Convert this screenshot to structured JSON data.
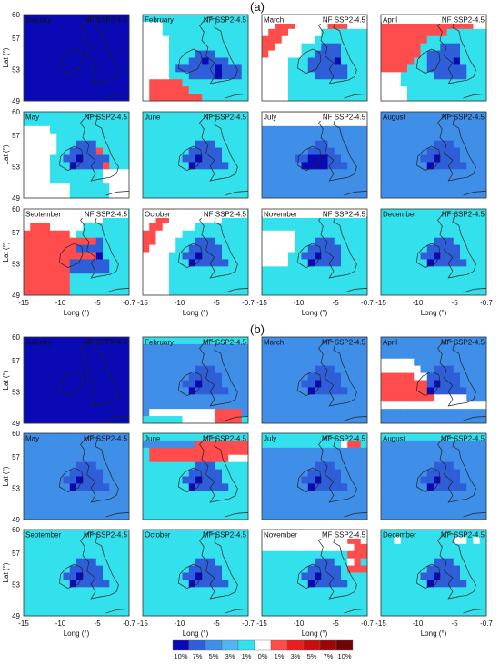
{
  "figure": {
    "panel_labels": [
      "(a)",
      "(b)"
    ],
    "xlabel": "Long (°)",
    "ylabel": "Lat (°)",
    "x_ticks": [
      "-15",
      "-10",
      "-5",
      "-0.7"
    ],
    "y_ticks": [
      "60",
      "57",
      "53",
      "49"
    ]
  },
  "colorbar": {
    "labels": [
      "10%",
      "7%",
      "5%",
      "3%",
      "1%",
      "0%",
      "1%",
      "3%",
      "5%",
      "7%",
      "10%"
    ],
    "colors": [
      "#0a0ab4",
      "#2e5fd8",
      "#3f8ee8",
      "#4fb6f4",
      "#33e1ec",
      "#ffffff",
      "#ff4c4c",
      "#e81e1e",
      "#c80e0e",
      "#990808",
      "#6e0404"
    ]
  },
  "chart_data": {
    "type": "heatmap",
    "xlim": [
      -15,
      -0.7
    ],
    "ylim": [
      49,
      60
    ],
    "groups": [
      {
        "label": "(a)",
        "scenario": "NF SSP2-4.5",
        "months": [
          {
            "month": "January",
            "rows": [
              "1111111111111111",
              "1111111111111111",
              "1111111111111111",
              "1111111111111111",
              "1111111111111111",
              "1111111111111111",
              "1111111111111111",
              "1111111111111111",
              "1111111111111111",
              "1111111111111111",
              "1111111111111111",
              "1111111111111111"
            ]
          },
          {
            "month": "February",
            "rows": [
              "4444444444444444",
              "0004444444444444",
              "0004444444444444",
              "0000444444444444",
              "0000444444444444",
              "0000444422244444",
              "0000444221222444",
              "0000422222212224",
              "0000444222212224",
              "0666664444444444",
              "0666666444444444",
              "0666666664444444"
            ]
          },
          {
            "month": "March",
            "rows": [
              "0000000000066600",
              "0066600000666000",
              "0666000004444444",
              "6660000044444444",
              "6600004442224444",
              "6000004422224444",
              "0000444222214444",
              "0000444222222444",
              "0000444422222444",
              "0000444444444444",
              "0000444444444444",
              "0000444444444444"
            ]
          },
          {
            "month": "April",
            "rows": [
              "0666666666666600",
              "6666666666666600",
              "6666666666444444",
              "6666666444444444",
              "6666664442224444",
              "6666664222224444",
              "6666644222214444",
              "6666444222222444",
              "0004444422222444",
              "0004444444444444",
              "0000444444444444",
              "0000444444444444"
            ]
          },
          {
            "month": "May",
            "rows": [
              "4444444444444444",
              "4444444444444444",
              "0000444444444444",
              "0000044444444444",
              "0000044422244444",
              "0000044222264444",
              "0000442212222444",
              "0000444122226444",
              "0000444444440000",
              "0000444444440000",
              "0000000444444000",
              "0000000444444000"
            ]
          },
          {
            "month": "June",
            "rows": [
              "4444444444444444",
              "4444444444444444",
              "4444444444444444",
              "4444444444444444",
              "4444444422244444",
              "4444444222224444",
              "4444442212224444",
              "4444444122222444",
              "4444444444444444",
              "4444444444444444",
              "4444444444444444",
              "4444444444444444"
            ]
          },
          {
            "month": "July",
            "rows": [
              "0066666666000000",
              "0000000000000000",
              "3333333333333333",
              "3333333333333333",
              "3333333322333333",
              "3333333222233333",
              "3333322111223333",
              "3333331111222333",
              "3333333333333333",
              "3333333333333333",
              "3333333333333333",
              "3333333333333333"
            ]
          },
          {
            "month": "August",
            "rows": [
              "3333333333333333",
              "3333333333333333",
              "3333333333333333",
              "3333333333333333",
              "3333333322233333",
              "3333333222223333",
              "3333332212223333",
              "3333333122222333",
              "3333333333333333",
              "3333333333333333",
              "3333333333333333",
              "3333333333333333"
            ]
          },
          {
            "month": "September",
            "rows": [
              "0000000000004444",
              "0000000000004444",
              "0666000004444444",
              "6666666044444444",
              "6666666666624444",
              "6666666622224444",
              "6666666666614444",
              "6666666222222444",
              "6666666222222444",
              "6666666444444444",
              "6666666444444444",
              "6666666444444444"
            ]
          },
          {
            "month": "October",
            "rows": [
              "0006600000004444",
              "0066000000004444",
              "0660000044444444",
              "6600004444444444",
              "6600044422244444",
              "6000044222224444",
              "0000442212224444",
              "0000444122222444",
              "0000444444444444",
              "0000444444444444",
              "0000444444444444",
              "0000444444444444"
            ]
          },
          {
            "month": "November",
            "rows": [
              "0000000000000000",
              "4444444444444444",
              "4444444444444444",
              "0000044444444444",
              "0000044422244444",
              "0000044222224444",
              "0000442212224444",
              "0000444122224444",
              "4444444444444444",
              "4444444444444444",
              "4444444444444444",
              "4444444444444444"
            ]
          },
          {
            "month": "December",
            "rows": [
              "4444444444444444",
              "4444444444444444",
              "4444444444444444",
              "4444444444444444",
              "4444444422244444",
              "4444444222224444",
              "4444442212224444",
              "4444444122222444",
              "4444444444444444",
              "4444444444444444",
              "4444444444444444",
              "4444444444444444"
            ]
          }
        ]
      },
      {
        "label": "(b)",
        "scenario": "MF SSP2-4.5",
        "months": [
          {
            "month": "January",
            "rows": [
              "1111111111111111",
              "1111111111111111",
              "1111111111111111",
              "1111111111111111",
              "1111111111111111",
              "1111111111111111",
              "1111111111111111",
              "1111111111111111",
              "1111111111111111",
              "1111111111111111",
              "1111111111111111",
              "1111111111111111"
            ]
          },
          {
            "month": "February",
            "rows": [
              "4444444444444444",
              "3333333333333333",
              "3333333333333333",
              "3333333333333333",
              "3333333322233333",
              "3333333222223333",
              "3333332212223333",
              "3333333122222333",
              "3333333333333333",
              "3333333333333333",
              "3000000000066663",
              "4444440000066664"
            ]
          },
          {
            "month": "March",
            "rows": [
              "3333333333333333",
              "3333333333333333",
              "3333333333333333",
              "3333333333333333",
              "3333333322233333",
              "3333333222223333",
              "3333332212223333",
              "3333333122222333",
              "3333333333333333",
              "3333333333333333",
              "3333333333333333",
              "3333333333333333"
            ]
          },
          {
            "month": "April",
            "rows": [
              "3333333333333333",
              "3333333333333333",
              "3333333333333333",
              "0000033333333333",
              "0000003322233333",
              "6666600222223333",
              "6666666212223333",
              "6666666122222333",
              "6666666600000333",
              "0000000000000000",
              "3333333333333333",
              "3333333333333333"
            ]
          },
          {
            "month": "May",
            "rows": [
              "3333333333333333",
              "3333333333333333",
              "3333333333333333",
              "3333333333333333",
              "3333333322233333",
              "3333333222223333",
              "3333332212223333",
              "3333333122222333",
              "3333333333333333",
              "3333333333333333",
              "3333333333333333",
              "3333333333333333"
            ]
          },
          {
            "month": "June",
            "rows": [
              "4444444444444444",
              "3333333366666666",
              "4666666666666666",
              "4666666666666000",
              "4444444422244444",
              "4444444222224444",
              "4444442212224444",
              "4444444122222444",
              "4444444444444444",
              "4444444444444444",
              "4444444444444444",
              "4444444444444444"
            ]
          },
          {
            "month": "July",
            "rows": [
              "4444444444444444",
              "4444444444440664",
              "3333333333333333",
              "3333333333333333",
              "3333333322233333",
              "3333333222223333",
              "3333332212223333",
              "3333333122222333",
              "3333333333333333",
              "3333333333333333",
              "3333333333333333",
              "3333333333333333"
            ]
          },
          {
            "month": "August",
            "rows": [
              "4444444444444444",
              "3333333333333333",
              "3333333333333333",
              "3333333333333333",
              "3333333322233333",
              "3333333222223333",
              "3333332212223333",
              "3333333122222333",
              "3333333333333333",
              "3333333333333333",
              "3333333333333333",
              "3333333333333333"
            ]
          },
          {
            "month": "September",
            "rows": [
              "4444444444444444",
              "4444444444444444",
              "4444444444444444",
              "4444444444444444",
              "4444444422244444",
              "4444444222224444",
              "4444442212224444",
              "4444444122222444",
              "4444444444444444",
              "4444444444444444",
              "4444444444444444",
              "4444444444444444"
            ]
          },
          {
            "month": "October",
            "rows": [
              "4444444444444444",
              "4444444444444444",
              "4444444444444444",
              "4444444444444444",
              "4444444422244444",
              "4444444222224444",
              "4444442212224444",
              "4444444122222444",
              "4444444444444444",
              "4444444444444444",
              "4444444444444444",
              "4444444444444444"
            ]
          },
          {
            "month": "November",
            "rows": [
              "0000000000000000",
              "0000000000000660",
              "0000000000000066",
              "4444444444444666",
              "4444444422244064",
              "4444444222224666",
              "4444442212224444",
              "4444444122222444",
              "4444444444444444",
              "4444444444444444",
              "4444444444444444",
              "4444444444444444"
            ]
          },
          {
            "month": "December",
            "rows": [
              "4444444444444444",
              "4404444444400404",
              "4444444444444444",
              "4444444444444444",
              "4444444422244444",
              "4444444222224444",
              "4444442212224444",
              "4444444122222444",
              "4444444444444444",
              "4444444444444444",
              "4444444444444444",
              "4444444444444444"
            ]
          }
        ]
      }
    ],
    "value_key": {
      "0": "0%",
      "1": "10% (blue)",
      "2": "7% (blue)",
      "3": "5% (blue)",
      "4": "1% (blue)",
      "6": "3% (red)"
    }
  }
}
